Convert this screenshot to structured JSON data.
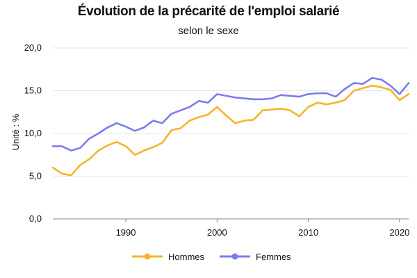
{
  "chart_data": {
    "type": "line",
    "title": "Évolution de la précarité de l'emploi salarié",
    "subtitle": "selon le sexe",
    "ylabel": "Unité : %",
    "ylim": [
      0,
      20
    ],
    "xlim": [
      1982,
      2021
    ],
    "y_ticks": [
      "0,0",
      "5,0",
      "10,0",
      "15,0",
      "20,0"
    ],
    "x_ticks": [
      "1990",
      "2000",
      "2010",
      "2020"
    ],
    "grid": "horizontal",
    "legend_position": "bottom",
    "x": [
      1982,
      1983,
      1984,
      1985,
      1986,
      1987,
      1988,
      1989,
      1990,
      1991,
      1992,
      1993,
      1994,
      1995,
      1996,
      1997,
      1998,
      1999,
      2000,
      2001,
      2002,
      2003,
      2004,
      2005,
      2006,
      2007,
      2008,
      2009,
      2010,
      2011,
      2012,
      2013,
      2014,
      2015,
      2016,
      2017,
      2018,
      2019,
      2020,
      2021
    ],
    "series": [
      {
        "name": "Hommes",
        "color": "#f7b32b",
        "values": [
          6.0,
          5.3,
          5.1,
          6.3,
          7.0,
          8.0,
          8.6,
          9.0,
          8.5,
          7.5,
          8.0,
          8.4,
          8.9,
          10.4,
          10.6,
          11.5,
          11.9,
          12.2,
          13.1,
          12.1,
          11.2,
          11.5,
          11.6,
          12.7,
          12.8,
          12.9,
          12.7,
          12.0,
          13.1,
          13.6,
          13.4,
          13.6,
          13.9,
          15.0,
          15.3,
          15.6,
          15.4,
          15.1,
          13.9,
          14.6
        ]
      },
      {
        "name": "Femmes",
        "color": "#7b7cf0",
        "values": [
          8.5,
          8.5,
          8.0,
          8.3,
          9.4,
          10.0,
          10.7,
          11.2,
          10.8,
          10.3,
          10.7,
          11.5,
          11.2,
          12.3,
          12.7,
          13.1,
          13.8,
          13.6,
          14.6,
          14.4,
          14.2,
          14.1,
          14.0,
          14.0,
          14.1,
          14.5,
          14.4,
          14.3,
          14.6,
          14.7,
          14.7,
          14.3,
          15.2,
          15.9,
          15.8,
          16.5,
          16.3,
          15.6,
          14.6,
          15.9
        ]
      }
    ]
  }
}
